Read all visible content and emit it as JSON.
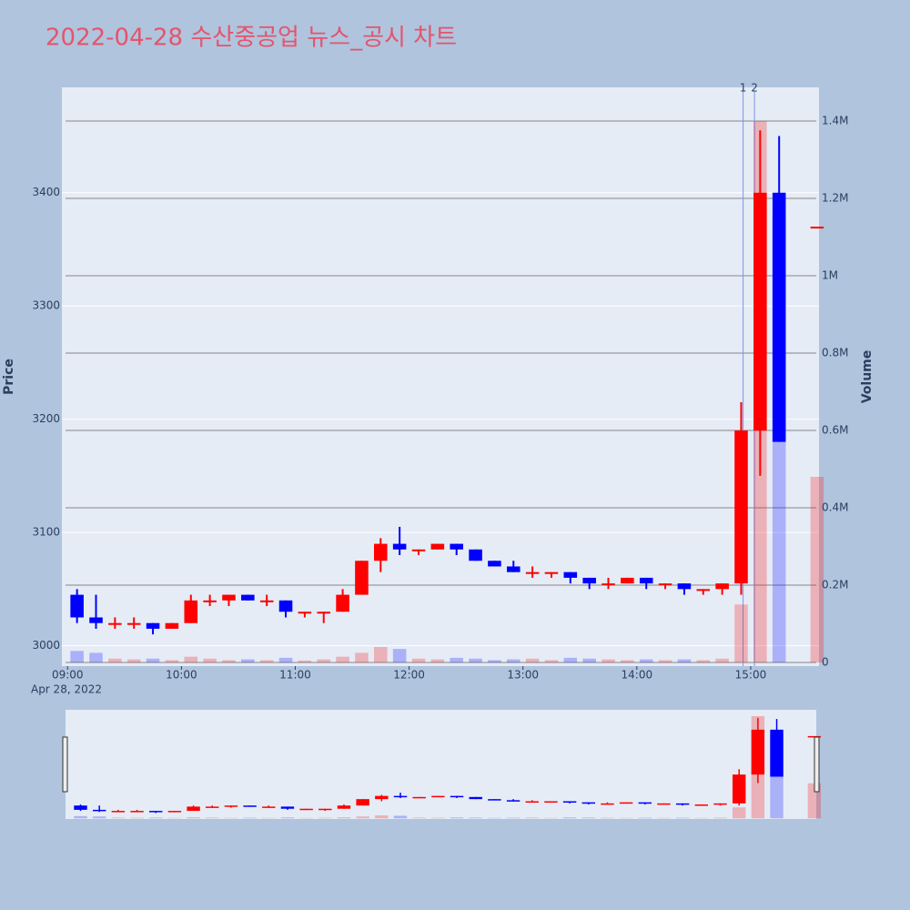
{
  "chart_data": {
    "type": "candlestick",
    "title": "2022-04-28 수산중공업 뉴스_공시 차트",
    "x": [
      "09:00",
      "09:10",
      "09:20",
      "09:30",
      "09:40",
      "09:50",
      "10:00",
      "10:10",
      "10:20",
      "10:30",
      "10:40",
      "10:50",
      "11:00",
      "11:10",
      "11:20",
      "11:30",
      "11:40",
      "11:50",
      "12:00",
      "12:10",
      "12:20",
      "12:30",
      "12:40",
      "12:50",
      "13:00",
      "13:10",
      "13:20",
      "13:30",
      "13:40",
      "13:50",
      "14:00",
      "14:10",
      "14:20",
      "14:30",
      "14:40",
      "14:50",
      "15:00",
      "15:10",
      "15:30"
    ],
    "open": [
      3045,
      3025,
      3020,
      3020,
      3020,
      3015,
      3020,
      3040,
      3040,
      3045,
      3040,
      3040,
      3030,
      3030,
      3030,
      3045,
      3075,
      3090,
      3085,
      3085,
      3090,
      3085,
      3075,
      3070,
      3065,
      3065,
      3065,
      3060,
      3055,
      3055,
      3060,
      3055,
      3055,
      3050,
      3050,
      3055,
      3190,
      3400,
      3370
    ],
    "high": [
      3050,
      3045,
      3025,
      3025,
      3020,
      3020,
      3045,
      3045,
      3045,
      3045,
      3045,
      3040,
      3030,
      3030,
      3050,
      3075,
      3095,
      3105,
      3085,
      3090,
      3090,
      3085,
      3075,
      3075,
      3070,
      3065,
      3065,
      3060,
      3060,
      3060,
      3060,
      3055,
      3055,
      3050,
      3055,
      3215,
      3455,
      3450,
      3370
    ],
    "low": [
      3020,
      3015,
      3015,
      3015,
      3010,
      3015,
      3020,
      3035,
      3035,
      3040,
      3035,
      3025,
      3025,
      3020,
      3030,
      3045,
      3065,
      3080,
      3080,
      3085,
      3080,
      3075,
      3070,
      3065,
      3060,
      3060,
      3055,
      3050,
      3050,
      3055,
      3050,
      3050,
      3045,
      3045,
      3045,
      3045,
      3150,
      3180,
      3370
    ],
    "close": [
      3025,
      3020,
      3020,
      3020,
      3015,
      3020,
      3040,
      3040,
      3045,
      3040,
      3040,
      3030,
      3030,
      3030,
      3045,
      3075,
      3090,
      3085,
      3085,
      3090,
      3085,
      3075,
      3070,
      3065,
      3065,
      3065,
      3060,
      3055,
      3055,
      3060,
      3055,
      3055,
      3050,
      3050,
      3055,
      3190,
      3400,
      3180,
      3370
    ],
    "volume": [
      30000,
      25000,
      10000,
      8000,
      10000,
      6000,
      15000,
      10000,
      6000,
      8000,
      6000,
      12000,
      5000,
      8000,
      15000,
      25000,
      40000,
      35000,
      10000,
      8000,
      12000,
      10000,
      6000,
      8000,
      10000,
      6000,
      12000,
      10000,
      8000,
      6000,
      8000,
      6000,
      8000,
      6000,
      10000,
      150000,
      1400000,
      1150000,
      480000
    ],
    "increasing_color": "#ff0000",
    "decreasing_color": "#0000ff",
    "xlim": [
      "08:57",
      "15:36"
    ],
    "xticks": [
      "09:00",
      "10:00",
      "11:00",
      "12:00",
      "13:00",
      "14:00",
      "15:00"
    ],
    "x_date_label": "Apr 28, 2022",
    "ylim": [
      2982,
      3493
    ],
    "yticks": [
      3000,
      3100,
      3200,
      3300,
      3400
    ],
    "y2lim": [
      -9400,
      1487000
    ],
    "y2ticks": [
      0,
      {
        "value": 200000,
        "label": "0.2M"
      },
      {
        "value": 400000,
        "label": "0.4M"
      },
      {
        "value": 600000,
        "label": "0.6M"
      },
      {
        "value": 800000,
        "label": "0.8M"
      },
      {
        "value": 1000000,
        "label": "1M"
      },
      {
        "value": 1200000,
        "label": "1.2M"
      },
      {
        "value": 1400000,
        "label": "1.4M"
      }
    ],
    "ylabel": "Price",
    "y2label": "Volume",
    "annotations": [
      {
        "x": "14:56",
        "text": "1"
      },
      {
        "x": "15:02",
        "text": "2"
      }
    ],
    "rangeslider": true
  }
}
